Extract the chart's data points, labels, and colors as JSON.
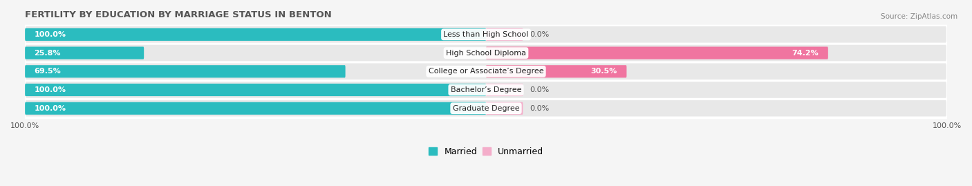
{
  "title": "FERTILITY BY EDUCATION BY MARRIAGE STATUS IN BENTON",
  "source": "Source: ZipAtlas.com",
  "categories": [
    "Less than High School",
    "High School Diploma",
    "College or Associate’s Degree",
    "Bachelor’s Degree",
    "Graduate Degree"
  ],
  "married": [
    100.0,
    25.8,
    69.5,
    100.0,
    100.0
  ],
  "unmarried": [
    0.0,
    74.2,
    30.5,
    0.0,
    0.0
  ],
  "married_color": "#2BBCBF",
  "unmarried_color_strong": "#F075A0",
  "unmarried_color_light": "#F4ADCA",
  "bar_bg_color": "#E8E8E8",
  "bg_color": "#F5F5F5",
  "row_separator_color": "#FFFFFF",
  "title_color": "#555555",
  "label_color": "#555555",
  "legend_married": "Married",
  "legend_unmarried": "Unmarried",
  "axis_label_left": "100.0%",
  "axis_label_right": "100.0%",
  "max_val": 100.0,
  "bar_height": 0.68,
  "figsize": [
    14.06,
    2.69
  ],
  "dpi": 100
}
